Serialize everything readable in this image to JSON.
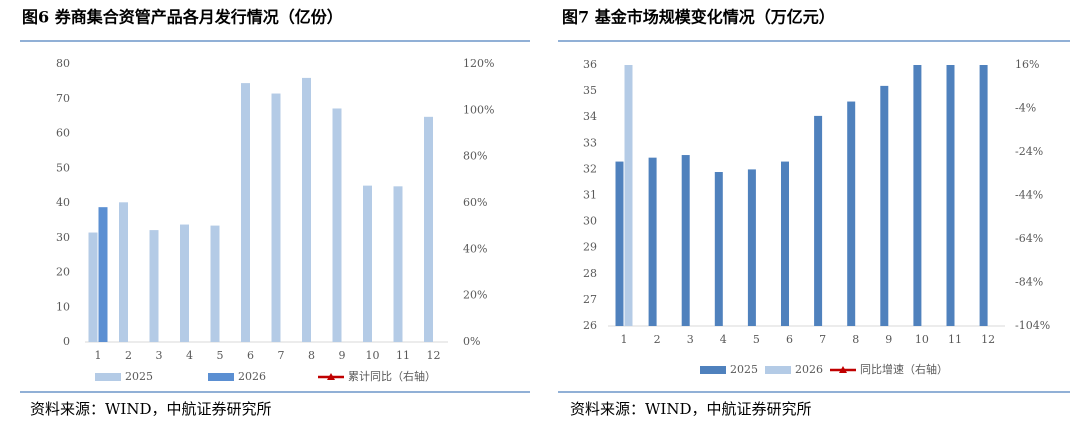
{
  "chart_data": [
    {
      "type": "bar",
      "title": "图6  券商集合资管产品各月发行情况（亿份）",
      "categories": [
        "1",
        "2",
        "3",
        "4",
        "5",
        "6",
        "7",
        "8",
        "9",
        "10",
        "11",
        "12"
      ],
      "series": [
        {
          "name": "2025",
          "color": "#b4cbe6",
          "values": [
            31.5,
            40.2,
            32.2,
            33.8,
            33.5,
            74.5,
            71.5,
            76,
            67.2,
            45,
            44.8,
            64.8
          ]
        },
        {
          "name": "2026",
          "color": "#5b8fd2",
          "values": [
            38.8,
            null,
            null,
            null,
            null,
            null,
            null,
            null,
            null,
            null,
            null,
            null
          ]
        },
        {
          "name": "累计同比（右轴）",
          "color": "#c00000",
          "axis": "y2",
          "values": [
            null,
            null,
            null,
            null,
            null,
            null,
            null,
            null,
            null,
            null,
            null,
            null
          ]
        }
      ],
      "ylim": [
        0,
        80
      ],
      "yticks": [
        0,
        10,
        20,
        30,
        40,
        50,
        60,
        70,
        80
      ],
      "y2lim": [
        0,
        120
      ],
      "y2ticks": [
        {
          "value": 0,
          "label": "0%"
        },
        {
          "value": 20,
          "label": "20%"
        },
        {
          "value": 40,
          "label": "40%"
        },
        {
          "value": 60,
          "label": "60%"
        },
        {
          "value": 80,
          "label": "80%"
        },
        {
          "value": 100,
          "label": "100%"
        },
        {
          "value": 120,
          "label": "120%"
        }
      ],
      "grid": false,
      "source": "资料来源：WIND，中航证券研究所"
    },
    {
      "type": "bar",
      "title": "图7  基金市场规模变化情况（万亿元）",
      "categories": [
        "1",
        "2",
        "3",
        "4",
        "5",
        "6",
        "7",
        "8",
        "9",
        "10",
        "11",
        "12"
      ],
      "series": [
        {
          "name": "2025",
          "color": "#4f81bd",
          "values": [
            32.3,
            32.45,
            32.55,
            31.9,
            32.0,
            32.3,
            34.05,
            34.6,
            35.2,
            36,
            36,
            36
          ]
        },
        {
          "name": "2026",
          "color": "#b4cbe6",
          "values": [
            36,
            null,
            null,
            null,
            null,
            null,
            null,
            null,
            null,
            null,
            null,
            null
          ]
        },
        {
          "name": "同比增速（右轴）",
          "color": "#c00000",
          "axis": "y2",
          "values": [
            null,
            null,
            null,
            null,
            null,
            null,
            null,
            null,
            null,
            null,
            null,
            null
          ]
        }
      ],
      "ylim": [
        26,
        36
      ],
      "yticks": [
        26,
        27,
        28,
        29,
        30,
        31,
        32,
        33,
        34,
        35,
        36
      ],
      "y2lim": [
        -104,
        16
      ],
      "y2ticks": [
        {
          "value": -104,
          "label": "-104%"
        },
        {
          "value": -84,
          "label": "-84%"
        },
        {
          "value": -64,
          "label": "-64%"
        },
        {
          "value": -44,
          "label": "-44%"
        },
        {
          "value": -24,
          "label": "-24%"
        },
        {
          "value": -4,
          "label": "-4%"
        },
        {
          "value": 16,
          "label": "16%"
        }
      ],
      "grid": false,
      "source": "资料来源：WIND，中航证券研究所"
    }
  ]
}
